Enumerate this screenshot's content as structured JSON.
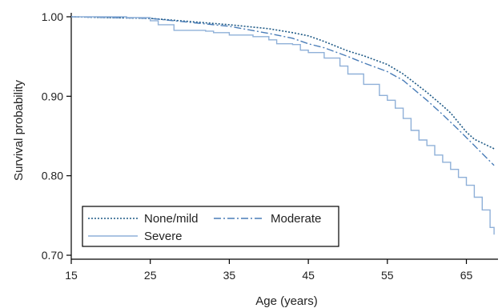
{
  "chart_data": {
    "type": "line",
    "title": "",
    "xlabel": "Age (years)",
    "ylabel": "Survival probability",
    "xlim": [
      15,
      69
    ],
    "ylim": [
      0.695,
      1.005
    ],
    "xticks": [
      15,
      25,
      35,
      45,
      55,
      65
    ],
    "yticks": [
      0.7,
      0.8,
      0.9,
      1.0
    ],
    "ytick_labels": [
      "0.70",
      "0.80",
      "0.90",
      "1.00"
    ],
    "grid": false,
    "legend_position": "bottom-left",
    "series": [
      {
        "name": "None/mild",
        "color": "#1f5a86",
        "style": "dotted",
        "step": false,
        "x": [
          15,
          20,
          25,
          30,
          35,
          40,
          43,
          45,
          47,
          50,
          52,
          55,
          57,
          60,
          62,
          63,
          65,
          66,
          68.5
        ],
        "y": [
          1.0,
          0.999,
          0.998,
          0.994,
          0.99,
          0.985,
          0.98,
          0.976,
          0.969,
          0.957,
          0.951,
          0.94,
          0.928,
          0.905,
          0.888,
          0.879,
          0.855,
          0.846,
          0.834
        ]
      },
      {
        "name": "Moderate",
        "color": "#4a7db8",
        "style": "dashdot",
        "step": false,
        "x": [
          15,
          20,
          25,
          30,
          35,
          40,
          43,
          45,
          47,
          50,
          52,
          55,
          57,
          60,
          62,
          64,
          66,
          68.5
        ],
        "y": [
          1.0,
          0.999,
          0.998,
          0.993,
          0.988,
          0.979,
          0.973,
          0.966,
          0.961,
          0.95,
          0.942,
          0.931,
          0.92,
          0.895,
          0.877,
          0.858,
          0.838,
          0.813
        ]
      },
      {
        "name": "Severe",
        "color": "#8fb0d8",
        "style": "solid",
        "step": true,
        "x": [
          15,
          22,
          25,
          26,
          28,
          32,
          33,
          35,
          38,
          40,
          41,
          43,
          44,
          45,
          47,
          49,
          50,
          52,
          54,
          55,
          56,
          57,
          58,
          59,
          60,
          61,
          62,
          63,
          64,
          65,
          66,
          67,
          68,
          68.5
        ],
        "y": [
          1.0,
          0.999,
          0.995,
          0.99,
          0.983,
          0.982,
          0.98,
          0.977,
          0.975,
          0.971,
          0.966,
          0.965,
          0.958,
          0.955,
          0.948,
          0.938,
          0.928,
          0.915,
          0.901,
          0.895,
          0.885,
          0.872,
          0.857,
          0.845,
          0.838,
          0.826,
          0.817,
          0.808,
          0.798,
          0.788,
          0.773,
          0.757,
          0.735,
          0.726
        ]
      }
    ]
  }
}
